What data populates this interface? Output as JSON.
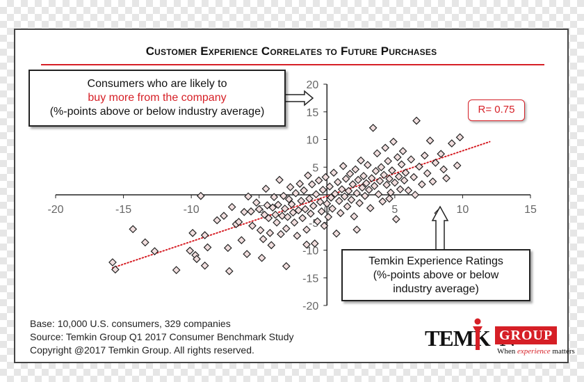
{
  "title": "Customer Experience Correlates to Future Purchases",
  "y_callout": {
    "line1": "Consumers who are likely to",
    "line2": "buy more from the company",
    "line3": "(%-points above or below industry average)"
  },
  "x_callout": {
    "line1": "Temkin Experience Ratings",
    "line2": "(%-points above or below",
    "line3": "industry average)"
  },
  "r_label": "R= 0.75",
  "footer": {
    "base": "Base: 10,000 U.S. consumers, 329 companies",
    "source": "Source: Temkin Group Q1 2017 Consumer Benchmark Study",
    "copyright": "Copyright @2017 Temkin Group. All rights reserved."
  },
  "logo": {
    "word_a": "TEMK",
    "word_b": "N",
    "group": "GROUP",
    "tag_a": "When ",
    "tag_b": "experience",
    "tag_c": " matters"
  },
  "colors": {
    "accent": "#d61f26",
    "marker_fill": "#f1dede",
    "marker_stroke": "#222222",
    "axis": "#222222"
  },
  "chart_data": {
    "type": "scatter",
    "marker": "diamond",
    "xlim": [
      -20,
      15
    ],
    "ylim": [
      -20,
      20
    ],
    "x_ticks": [
      -20,
      -15,
      -10,
      -5,
      0,
      5,
      10,
      15
    ],
    "y_ticks": [
      -20,
      -15,
      -10,
      -5,
      0,
      5,
      10,
      15,
      20
    ],
    "x_tick_labels": [
      "-20",
      "-15",
      "-10",
      "-5",
      "0",
      "5",
      "10",
      "15"
    ],
    "y_tick_labels": [
      "-20",
      "-15",
      "-10",
      "-5",
      "0",
      "5",
      "10",
      "15",
      "20"
    ],
    "grid": false,
    "trendline": {
      "style": "dotted",
      "color": "#d61f26",
      "from": [
        -15.8,
        -13.2
      ],
      "to": [
        12.0,
        9.6
      ]
    },
    "annotation_r": 0.75,
    "points": [
      [
        -15.8,
        -12.2
      ],
      [
        -15.6,
        -13.5
      ],
      [
        -14.3,
        -6.2
      ],
      [
        -13.4,
        -8.6
      ],
      [
        -12.7,
        -10.2
      ],
      [
        -11.1,
        -13.6
      ],
      [
        -10.1,
        -10.1
      ],
      [
        -9.9,
        -6.9
      ],
      [
        -9.7,
        -10.9
      ],
      [
        -9.6,
        -11.6
      ],
      [
        -9.3,
        -0.2
      ],
      [
        -9.0,
        -7.3
      ],
      [
        -9.0,
        -12.8
      ],
      [
        -8.8,
        -9.5
      ],
      [
        -8.1,
        -4.6
      ],
      [
        -7.6,
        -3.8
      ],
      [
        -7.3,
        -9.6
      ],
      [
        -7.2,
        -13.8
      ],
      [
        -7.0,
        -2.2
      ],
      [
        -6.7,
        -5.3
      ],
      [
        -6.5,
        -4.9
      ],
      [
        -6.1,
        -3.1
      ],
      [
        -5.9,
        -10.7
      ],
      [
        -5.8,
        -0.3
      ],
      [
        -5.6,
        -3.0
      ],
      [
        -5.5,
        -5.6
      ],
      [
        -5.2,
        -1.4
      ],
      [
        -5.0,
        -2.6
      ],
      [
        -4.9,
        -6.4
      ],
      [
        -4.8,
        -11.4
      ],
      [
        -4.7,
        -8.0
      ],
      [
        -4.6,
        -3.6
      ],
      [
        -4.5,
        1.1
      ],
      [
        -4.4,
        -1.9
      ],
      [
        -4.3,
        -4.2
      ],
      [
        -4.2,
        -6.9
      ],
      [
        -4.1,
        -9.1
      ],
      [
        -4.0,
        -2.3
      ],
      [
        -3.9,
        -0.4
      ],
      [
        -3.8,
        -3.6
      ],
      [
        -3.7,
        -5.0
      ],
      [
        -3.6,
        -1.8
      ],
      [
        -3.5,
        2.7
      ],
      [
        -3.4,
        -7.1
      ],
      [
        -3.3,
        -3.8
      ],
      [
        -3.2,
        -0.2
      ],
      [
        -3.1,
        -2.5
      ],
      [
        -3.0,
        -6.1
      ],
      [
        -2.9,
        -4.0
      ],
      [
        -2.8,
        -0.8
      ],
      [
        -2.7,
        1.4
      ],
      [
        -2.6,
        -1.7
      ],
      [
        -2.5,
        -3.2
      ],
      [
        -2.4,
        -5.0
      ],
      [
        -2.3,
        0.3
      ],
      [
        -2.2,
        -7.4
      ],
      [
        -2.1,
        -2.8
      ],
      [
        -2.0,
        2.0
      ],
      [
        -1.9,
        -1.1
      ],
      [
        -1.8,
        -4.2
      ],
      [
        -1.7,
        0.8
      ],
      [
        -1.6,
        -2.6
      ],
      [
        -1.5,
        -6.3
      ],
      [
        -1.4,
        3.5
      ],
      [
        -1.3,
        -0.7
      ],
      [
        -1.2,
        -3.4
      ],
      [
        -1.1,
        1.9
      ],
      [
        -1.0,
        -2.0
      ],
      [
        -0.9,
        -8.8
      ],
      [
        -0.8,
        0.1
      ],
      [
        -0.7,
        -4.8
      ],
      [
        -0.6,
        2.6
      ],
      [
        -0.5,
        -1.3
      ],
      [
        -0.4,
        -3.0
      ],
      [
        -0.3,
        0.9
      ],
      [
        -0.2,
        -5.6
      ],
      [
        -0.1,
        3.2
      ],
      [
        0.0,
        -1.6
      ],
      [
        0.1,
        -4.0
      ],
      [
        0.2,
        1.5
      ],
      [
        0.3,
        -0.5
      ],
      [
        0.4,
        -2.5
      ],
      [
        0.5,
        4.0
      ],
      [
        0.6,
        0.2
      ],
      [
        0.7,
        -7.0
      ],
      [
        0.8,
        2.3
      ],
      [
        0.9,
        -1.1
      ],
      [
        1.0,
        -3.3
      ],
      [
        1.1,
        1.0
      ],
      [
        1.2,
        5.2
      ],
      [
        1.3,
        -0.3
      ],
      [
        1.4,
        2.9
      ],
      [
        1.5,
        -2.1
      ],
      [
        1.6,
        0.7
      ],
      [
        1.7,
        3.8
      ],
      [
        1.8,
        -0.9
      ],
      [
        1.9,
        1.9
      ],
      [
        2.0,
        -3.9
      ],
      [
        2.1,
        4.6
      ],
      [
        2.2,
        0.3
      ],
      [
        2.3,
        2.7
      ],
      [
        2.4,
        -1.5
      ],
      [
        2.5,
        6.2
      ],
      [
        2.6,
        1.3
      ],
      [
        2.7,
        3.4
      ],
      [
        2.8,
        -0.2
      ],
      [
        2.9,
        2.1
      ],
      [
        3.0,
        5.4
      ],
      [
        3.1,
        0.9
      ],
      [
        3.2,
        -2.4
      ],
      [
        3.3,
        3.0
      ],
      [
        3.4,
        12.1
      ],
      [
        3.5,
        1.6
      ],
      [
        3.6,
        4.3
      ],
      [
        3.7,
        7.5
      ],
      [
        3.8,
        0.1
      ],
      [
        3.9,
        2.5
      ],
      [
        4.0,
        5.0
      ],
      [
        4.1,
        -1.2
      ],
      [
        4.2,
        3.6
      ],
      [
        4.3,
        8.5
      ],
      [
        4.4,
        1.8
      ],
      [
        4.5,
        6.1
      ],
      [
        4.6,
        2.9
      ],
      [
        4.7,
        0.4
      ],
      [
        4.8,
        4.4
      ],
      [
        4.9,
        9.6
      ],
      [
        5.0,
        2.2
      ],
      [
        5.1,
        -4.4
      ],
      [
        5.2,
        6.8
      ],
      [
        5.3,
        3.3
      ],
      [
        5.4,
        1.0
      ],
      [
        5.5,
        5.5
      ],
      [
        5.6,
        7.9
      ],
      [
        5.7,
        2.6
      ],
      [
        5.8,
        4.0
      ],
      [
        6.0,
        0.8
      ],
      [
        6.2,
        6.4
      ],
      [
        6.4,
        3.2
      ],
      [
        6.6,
        13.4
      ],
      [
        6.8,
        5.1
      ],
      [
        7.0,
        1.9
      ],
      [
        7.2,
        7.1
      ],
      [
        7.4,
        3.9
      ],
      [
        7.6,
        9.8
      ],
      [
        7.8,
        2.4
      ],
      [
        8.0,
        5.8
      ],
      [
        8.2,
        -3.3
      ],
      [
        8.4,
        7.4
      ],
      [
        8.6,
        4.6
      ],
      [
        8.8,
        3.0
      ],
      [
        9.2,
        9.3
      ],
      [
        9.6,
        5.3
      ],
      [
        9.8,
        10.4
      ],
      [
        -3.0,
        -12.9
      ],
      [
        -1.5,
        -9.0
      ],
      [
        2.2,
        -6.3
      ],
      [
        4.6,
        -0.7
      ],
      [
        6.5,
        0.0
      ],
      [
        -6.3,
        -8.2
      ]
    ]
  }
}
